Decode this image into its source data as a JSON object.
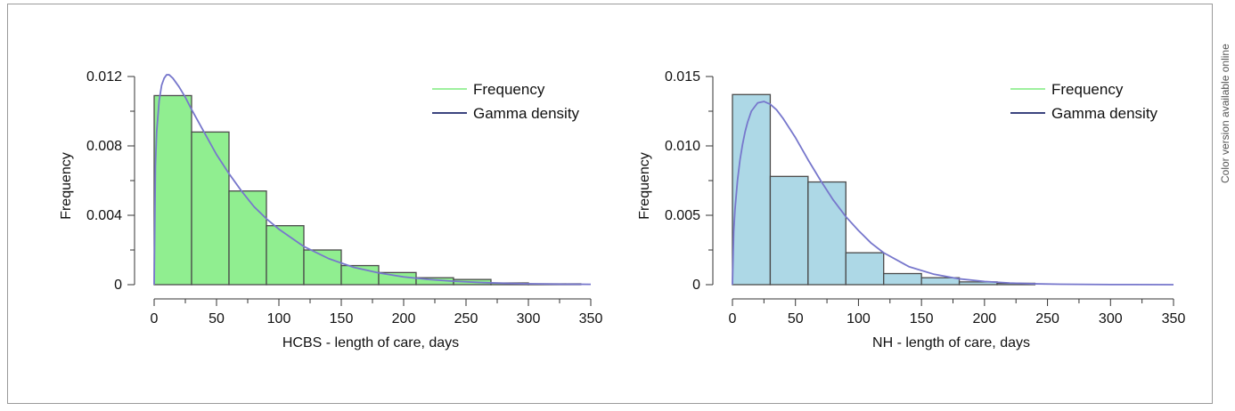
{
  "side_note": "Color version available online",
  "chart_data": [
    {
      "type": "bar",
      "xlabel": "HCBS - length of care, days",
      "ylabel": "Frequency",
      "xlim": [
        0,
        350
      ],
      "ylim": [
        0,
        0.012
      ],
      "x_ticks": [
        0,
        50,
        100,
        150,
        200,
        250,
        300,
        350
      ],
      "y_ticks": [
        0,
        0.004,
        0.008,
        0.012
      ],
      "x_tick_labels": [
        "0",
        "50",
        "100",
        "150",
        "200",
        "250",
        "300",
        "350"
      ],
      "y_tick_labels": [
        "0",
        "0.004",
        "0.008",
        "0.012"
      ],
      "bin_width": 30,
      "bins": [
        {
          "start": 0,
          "end": 30,
          "value": 0.0109
        },
        {
          "start": 30,
          "end": 60,
          "value": 0.0088
        },
        {
          "start": 60,
          "end": 90,
          "value": 0.0054
        },
        {
          "start": 90,
          "end": 120,
          "value": 0.0034
        },
        {
          "start": 120,
          "end": 150,
          "value": 0.002
        },
        {
          "start": 150,
          "end": 180,
          "value": 0.0011
        },
        {
          "start": 180,
          "end": 210,
          "value": 0.0007
        },
        {
          "start": 210,
          "end": 240,
          "value": 0.0004
        },
        {
          "start": 240,
          "end": 270,
          "value": 0.0003
        },
        {
          "start": 270,
          "end": 300,
          "value": 0.0001
        },
        {
          "start": 300,
          "end": 342,
          "value": 5e-05
        }
      ],
      "density_curve": {
        "name": "Gamma density",
        "x": [
          0,
          1,
          2,
          4,
          6,
          8,
          10,
          12,
          15,
          20,
          25,
          30,
          40,
          50,
          60,
          70,
          80,
          90,
          100,
          120,
          140,
          160,
          180,
          200,
          220,
          240,
          260,
          280,
          300,
          325,
          350
        ],
        "y": [
          0,
          0.0068,
          0.0088,
          0.0106,
          0.0115,
          0.0119,
          0.0121,
          0.0121,
          0.0119,
          0.0114,
          0.0108,
          0.0101,
          0.0088,
          0.0075,
          0.0064,
          0.0054,
          0.0045,
          0.0038,
          0.0032,
          0.0022,
          0.0015,
          0.001,
          0.00068,
          0.00045,
          0.0003,
          0.0002,
          0.00013,
          8e-05,
          5e-05,
          3e-05,
          2e-05
        ]
      },
      "legend": [
        {
          "label": "Frequency",
          "color": "#90ee90"
        },
        {
          "label": "Gamma density",
          "color": "#1f2a6b"
        }
      ],
      "legend_position": "top-right",
      "bar_fill": "#90ee90",
      "curve_color": "#7777cc",
      "grid": false
    },
    {
      "type": "bar",
      "xlabel": "NH - length of care, days",
      "ylabel": "Frequency",
      "xlim": [
        0,
        350
      ],
      "ylim": [
        0,
        0.015
      ],
      "x_ticks": [
        0,
        50,
        100,
        150,
        200,
        250,
        300,
        350
      ],
      "y_ticks": [
        0,
        0.005,
        0.01,
        0.015
      ],
      "x_tick_labels": [
        "0",
        "50",
        "100",
        "150",
        "200",
        "250",
        "300",
        "350"
      ],
      "y_tick_labels": [
        "0",
        "0.005",
        "0.010",
        "0.015"
      ],
      "bin_width": 30,
      "bins": [
        {
          "start": 0,
          "end": 30,
          "value": 0.0137
        },
        {
          "start": 30,
          "end": 60,
          "value": 0.0078
        },
        {
          "start": 60,
          "end": 90,
          "value": 0.0074
        },
        {
          "start": 90,
          "end": 120,
          "value": 0.0023
        },
        {
          "start": 120,
          "end": 150,
          "value": 0.0008
        },
        {
          "start": 150,
          "end": 180,
          "value": 0.0005
        },
        {
          "start": 180,
          "end": 210,
          "value": 0.0002
        },
        {
          "start": 210,
          "end": 240,
          "value": 0.0001
        }
      ],
      "density_curve": {
        "name": "Gamma density",
        "x": [
          0,
          1,
          2,
          4,
          6,
          8,
          10,
          12,
          15,
          20,
          25,
          30,
          35,
          40,
          50,
          60,
          70,
          80,
          90,
          100,
          110,
          120,
          140,
          160,
          180,
          200,
          220,
          240,
          260,
          300,
          350
        ],
        "y": [
          0,
          0.0038,
          0.0054,
          0.0075,
          0.009,
          0.0101,
          0.011,
          0.0117,
          0.0125,
          0.0131,
          0.0132,
          0.013,
          0.0126,
          0.012,
          0.0106,
          0.009,
          0.0075,
          0.0061,
          0.0049,
          0.0039,
          0.003,
          0.0023,
          0.0013,
          0.00075,
          0.00042,
          0.00023,
          0.00012,
          6e-05,
          3e-05,
          1e-05,
          0
        ]
      },
      "legend": [
        {
          "label": "Frequency",
          "color": "#90ee90"
        },
        {
          "label": "Gamma density",
          "color": "#1f2a6b"
        }
      ],
      "legend_position": "top-right",
      "bar_fill": "#add8e6",
      "curve_color": "#7777cc",
      "grid": false
    }
  ]
}
